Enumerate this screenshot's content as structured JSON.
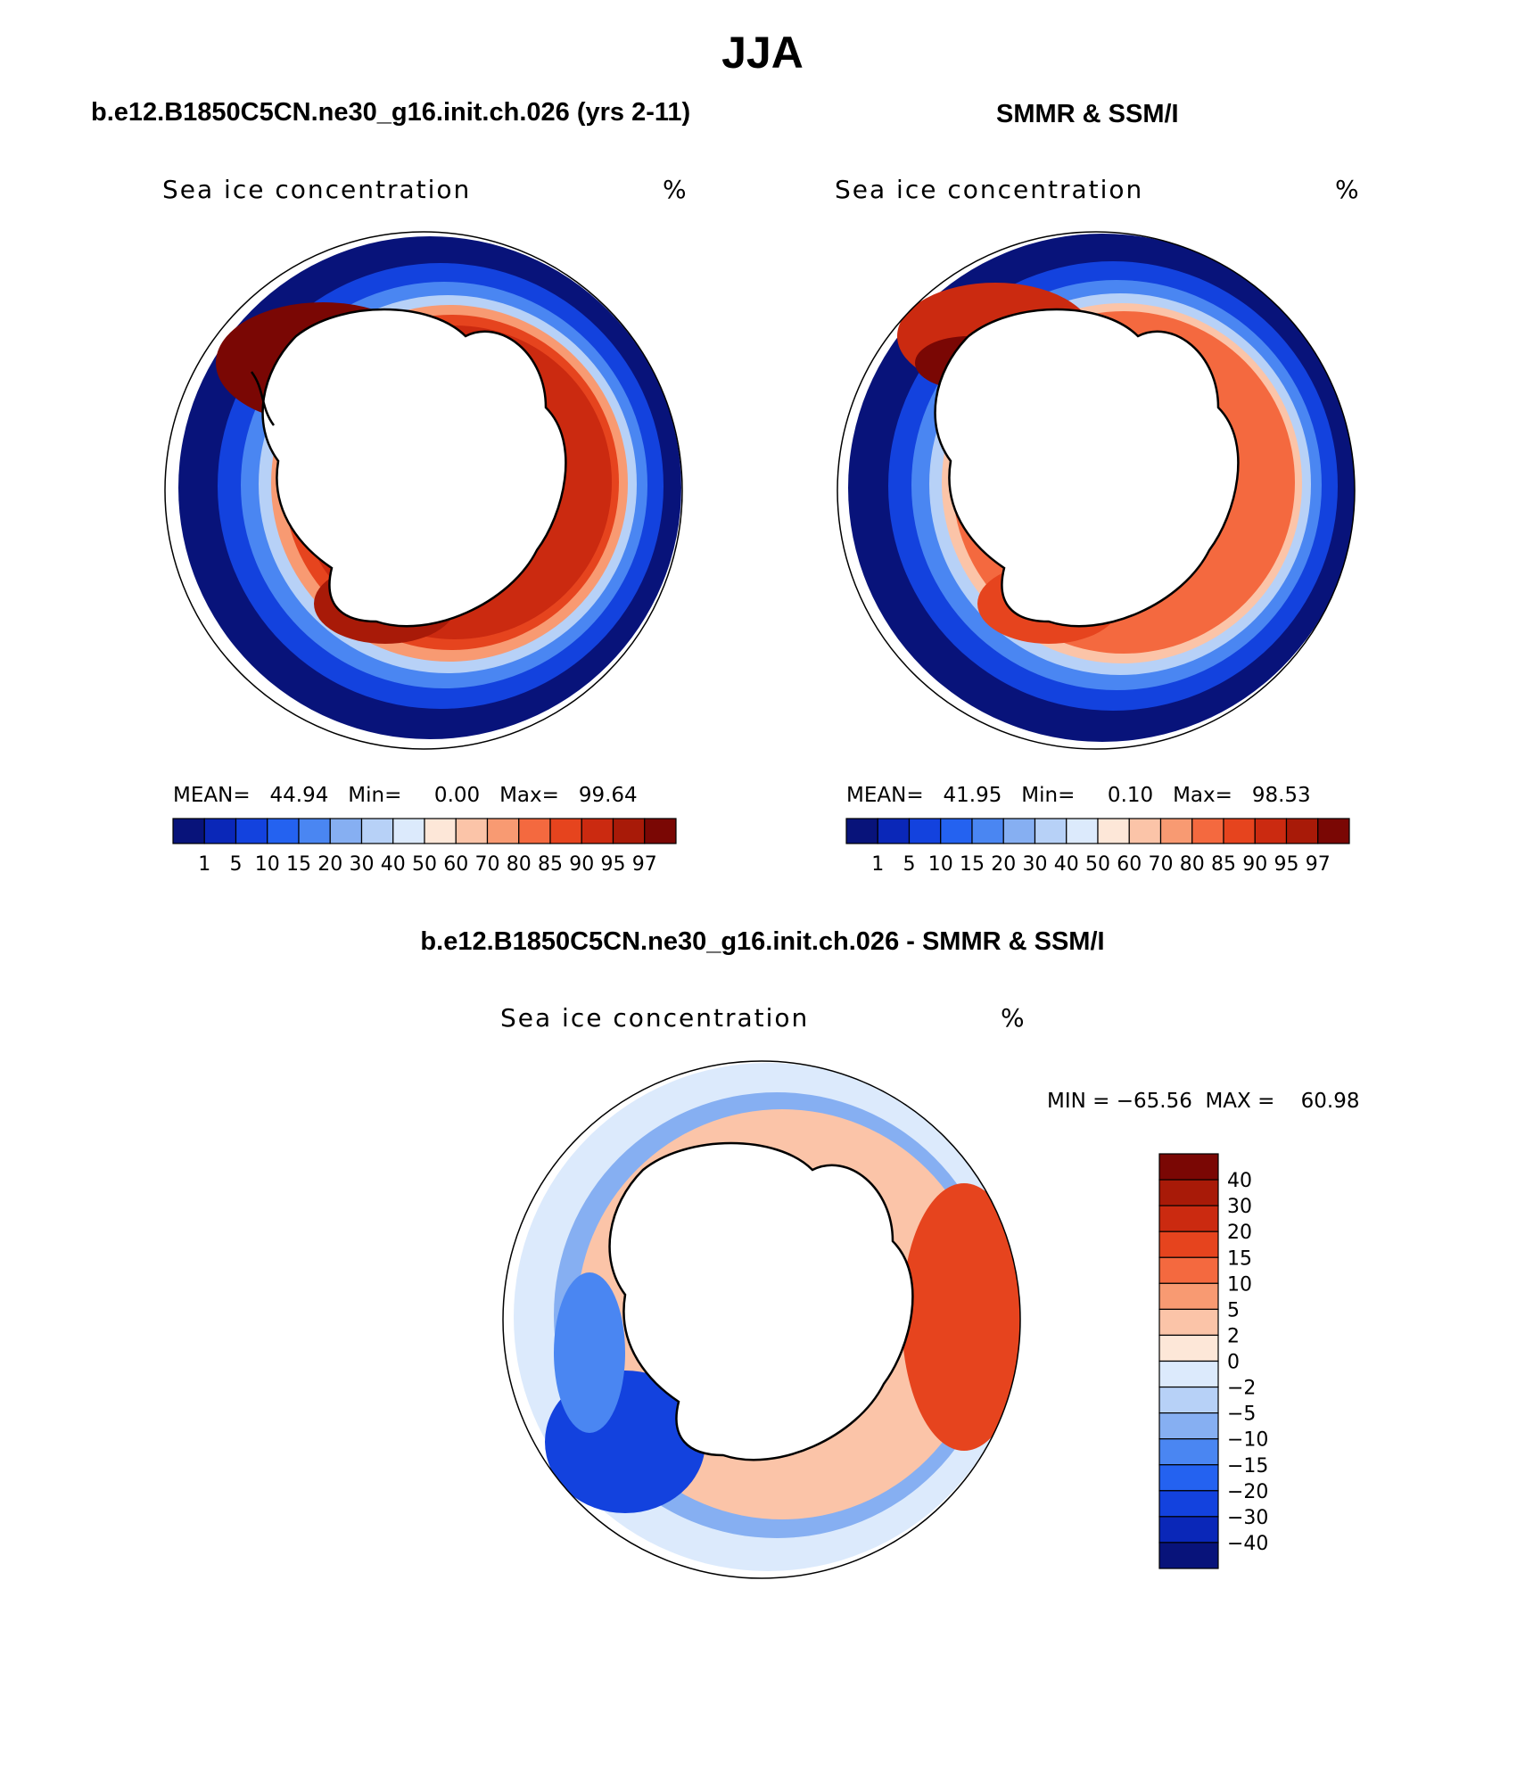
{
  "figure": {
    "title": "JJA",
    "panel_a_subtitle": "b.e12.B1850C5CN.ne30_g16.init.ch.026 (yrs 2-11)",
    "panel_b_subtitle": "SMMR & SSM/I",
    "panel_c_subtitle": "b.e12.B1850C5CN.ne30_g16.init.ch.026 - SMMR & SSM/I"
  },
  "panels": {
    "a": {
      "plot_title": "Sea ice concentration",
      "units": "%",
      "stats": "MEAN=   44.94   Min=     0.00   Max=   99.64"
    },
    "b": {
      "plot_title": "Sea ice concentration",
      "units": "%",
      "stats": "MEAN=   41.95   Min=     0.10   Max=   98.53"
    },
    "c": {
      "plot_title": "Sea ice concentration",
      "units": "%",
      "stats": "MIN = −65.56  MAX =    60.98"
    }
  },
  "colorbar_concentration": {
    "labels": [
      "1",
      "5",
      "10",
      "15",
      "20",
      "30",
      "40",
      "50",
      "60",
      "70",
      "80",
      "85",
      "90",
      "95",
      "97"
    ],
    "colors": [
      "#08137a",
      "#0a27b8",
      "#1342de",
      "#2462f0",
      "#4a86f2",
      "#86aff2",
      "#b7d1f7",
      "#dceafc",
      "#fde7d8",
      "#fbc4a8",
      "#f89a72",
      "#f4693f",
      "#e6441e",
      "#cb2a10",
      "#a81a08",
      "#7a0704"
    ]
  },
  "colorbar_difference": {
    "labels": [
      "40",
      "30",
      "20",
      "15",
      "10",
      "5",
      "2",
      "0",
      "−2",
      "−5",
      "−10",
      "−15",
      "−20",
      "−30",
      "−40"
    ],
    "colors": [
      "#7a0704",
      "#a81a08",
      "#cb2a10",
      "#e6441e",
      "#f4693f",
      "#f89a72",
      "#fbc4a8",
      "#fde7d8",
      "#dceafc",
      "#b7d1f7",
      "#86aff2",
      "#4a86f2",
      "#2462f0",
      "#1342de",
      "#0a27b8",
      "#08137a"
    ]
  }
}
